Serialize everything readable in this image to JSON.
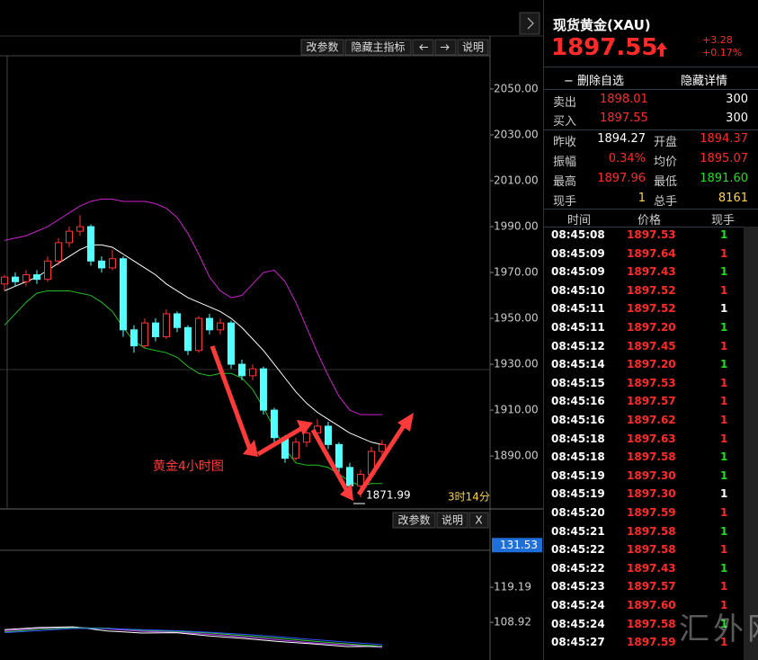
{
  "chart_data": [
    {
      "type": "candlestick",
      "candles": [
        {
          "o": 1965,
          "h": 1969,
          "l": 1962,
          "c": 1968
        },
        {
          "o": 1968,
          "h": 1970,
          "l": 1964,
          "c": 1966
        },
        {
          "o": 1966,
          "h": 1971,
          "l": 1964,
          "c": 1969
        },
        {
          "o": 1969,
          "h": 1971,
          "l": 1965,
          "c": 1967
        },
        {
          "o": 1967,
          "h": 1977,
          "l": 1966,
          "c": 1975
        },
        {
          "o": 1975,
          "h": 1985,
          "l": 1973,
          "c": 1983
        },
        {
          "o": 1983,
          "h": 1990,
          "l": 1981,
          "c": 1988
        },
        {
          "o": 1988,
          "h": 1995,
          "l": 1986,
          "c": 1990
        },
        {
          "o": 1990,
          "h": 1991,
          "l": 1973,
          "c": 1975
        },
        {
          "o": 1975,
          "h": 1977,
          "l": 1970,
          "c": 1972
        },
        {
          "o": 1972,
          "h": 1980,
          "l": 1971,
          "c": 1976
        },
        {
          "o": 1976,
          "h": 1977,
          "l": 1942,
          "c": 1945
        },
        {
          "o": 1945,
          "h": 1947,
          "l": 1935,
          "c": 1938
        },
        {
          "o": 1938,
          "h": 1950,
          "l": 1937,
          "c": 1948
        },
        {
          "o": 1948,
          "h": 1950,
          "l": 1940,
          "c": 1942
        },
        {
          "o": 1942,
          "h": 1954,
          "l": 1941,
          "c": 1952
        },
        {
          "o": 1952,
          "h": 1953,
          "l": 1944,
          "c": 1946
        },
        {
          "o": 1946,
          "h": 1947,
          "l": 1934,
          "c": 1936
        },
        {
          "o": 1936,
          "h": 1951,
          "l": 1935,
          "c": 1950
        },
        {
          "o": 1950,
          "h": 1952,
          "l": 1943,
          "c": 1945
        },
        {
          "o": 1945,
          "h": 1950,
          "l": 1943,
          "c": 1948
        },
        {
          "o": 1948,
          "h": 1949,
          "l": 1928,
          "c": 1930
        },
        {
          "o": 1930,
          "h": 1932,
          "l": 1923,
          "c": 1925
        },
        {
          "o": 1925,
          "h": 1930,
          "l": 1923,
          "c": 1928
        },
        {
          "o": 1928,
          "h": 1929,
          "l": 1908,
          "c": 1910
        },
        {
          "o": 1910,
          "h": 1911,
          "l": 1896,
          "c": 1898
        },
        {
          "o": 1898,
          "h": 1899,
          "l": 1887,
          "c": 1889
        },
        {
          "o": 1889,
          "h": 1898,
          "l": 1888,
          "c": 1896
        },
        {
          "o": 1896,
          "h": 1902,
          "l": 1894,
          "c": 1900
        },
        {
          "o": 1900,
          "h": 1906,
          "l": 1898,
          "c": 1903
        },
        {
          "o": 1903,
          "h": 1905,
          "l": 1893,
          "c": 1895
        },
        {
          "o": 1895,
          "h": 1896,
          "l": 1883,
          "c": 1885
        },
        {
          "o": 1885,
          "h": 1887,
          "l": 1875,
          "c": 1877
        },
        {
          "o": 1877,
          "h": 1884,
          "l": 1871.99,
          "c": 1882
        },
        {
          "o": 1882,
          "h": 1894,
          "l": 1880,
          "c": 1892
        },
        {
          "o": 1892,
          "h": 1897,
          "l": 1890,
          "c": 1895
        }
      ],
      "up_color": "#ff3232",
      "down_color": "#54ffff",
      "bands": {
        "upper": [
          1984,
          1985,
          1986,
          1988,
          1990,
          1993,
          1996,
          1999,
          2001,
          2002,
          2002,
          2001,
          2001,
          2001,
          2000,
          1998,
          1994,
          1987,
          1978,
          1968,
          1962,
          1959,
          1960,
          1965,
          1970,
          1971,
          1966,
          1957,
          1946,
          1935,
          1925,
          1916,
          1910,
          1908,
          1908,
          1908
        ],
        "middle": [
          1962,
          1964,
          1966,
          1968,
          1971,
          1974,
          1977,
          1980,
          1982,
          1982,
          1981,
          1978,
          1975,
          1972,
          1969,
          1965,
          1962,
          1959,
          1957,
          1955,
          1953,
          1950,
          1946,
          1941,
          1936,
          1930,
          1924,
          1918,
          1913,
          1909,
          1906,
          1903,
          1900,
          1898,
          1896,
          1895
        ],
        "lower": [
          1947,
          1952,
          1957,
          1961,
          1962,
          1962,
          1962,
          1961,
          1960,
          1957,
          1953,
          1946,
          1940,
          1937,
          1936,
          1935,
          1933,
          1929,
          1926,
          1925,
          1926,
          1926,
          1924,
          1919,
          1911,
          1902,
          1893,
          1887,
          1886,
          1886,
          1885,
          1882,
          1879,
          1877,
          1878,
          1878
        ],
        "upper_color": "#d020d0",
        "middle_color": "#ffffff",
        "lower_color": "#22c022"
      },
      "ylim": [
        1867.3,
        2064.5
      ],
      "yticks": [
        {
          "value": 2050,
          "label": "2050.00"
        },
        {
          "value": 2030,
          "label": "2030.00"
        },
        {
          "value": 2010,
          "label": "2010.00"
        },
        {
          "value": 1990,
          "label": "1990.00"
        },
        {
          "value": 1970,
          "label": "1970.00"
        },
        {
          "value": 1950,
          "label": "1950.00"
        },
        {
          "value": 1930,
          "label": "1930.00"
        },
        {
          "value": 1910,
          "label": "1910.00"
        },
        {
          "value": 1890,
          "label": "1890.00"
        }
      ],
      "annotation": "黄金4小时图",
      "low_label": "1871.99",
      "countdown": "3时14分",
      "toolbar": [
        "改参数",
        "隐藏主指标",
        "说明"
      ]
    },
    {
      "type": "line",
      "lines": [
        {
          "color": "#c040ff",
          "values": [
            106.5,
            107.2,
            107.5,
            107,
            106.3,
            106,
            105.4,
            104.6,
            103.8,
            102.9,
            102.3,
            101.6
          ]
        },
        {
          "color": "#ffffff",
          "values": [
            106.8,
            107.4,
            107.6,
            106.4,
            105.8,
            105.9,
            104.9,
            104.2,
            103.3,
            102.6,
            101.8,
            101.9
          ]
        },
        {
          "color": "#30d030",
          "values": [
            106.1,
            106.9,
            107.3,
            107.2,
            106.6,
            106.3,
            105.8,
            105,
            104.3,
            103.4,
            102.6,
            101.9
          ]
        },
        {
          "color": "#3050ff",
          "values": [
            105.9,
            106.5,
            107.1,
            107.1,
            106.8,
            106.5,
            106,
            105.4,
            104.7,
            103.9,
            103.1,
            102.4
          ]
        }
      ],
      "ylim": [
        97.9,
        141.6
      ],
      "yticks": [
        119.19,
        108.92
      ],
      "last_value": 131.53,
      "toolbar": [
        "改参数",
        "说明",
        "X"
      ]
    }
  ],
  "quote": {
    "title": "现货黄金(XAU)",
    "price": "1897.55",
    "change": "+3.28",
    "change_pct": "+0.17%",
    "remove": "删除自选",
    "hide": "隐藏详情",
    "sell": [
      "卖出",
      "1898.01",
      "300"
    ],
    "buy": [
      "买入",
      "1897.55",
      "300"
    ],
    "stats": [
      [
        "昨收",
        "1894.27",
        "开盘",
        "1894.37"
      ],
      [
        "振幅",
        "0.34%",
        "均价",
        "1895.07"
      ],
      [
        "最高",
        "1897.96",
        "最低",
        "1891.60"
      ],
      [
        "现手",
        "1",
        "总手",
        "8161"
      ]
    ]
  },
  "trades": {
    "headers": [
      "时间",
      "价格",
      "现手"
    ],
    "rows": [
      {
        "time": "08:45:08",
        "price": "1897.53",
        "volume": "1",
        "color": "#22dd22"
      },
      {
        "time": "08:45:09",
        "price": "1897.64",
        "volume": "1",
        "color": "#ff2a2a"
      },
      {
        "time": "08:45:09",
        "price": "1897.43",
        "volume": "1",
        "color": "#22dd22"
      },
      {
        "time": "08:45:10",
        "price": "1897.52",
        "volume": "1",
        "color": "#ff2a2a"
      },
      {
        "time": "08:45:11",
        "price": "1897.52",
        "volume": "1",
        "color": "#ffffff"
      },
      {
        "time": "08:45:11",
        "price": "1897.20",
        "volume": "1",
        "color": "#22dd22"
      },
      {
        "time": "08:45:12",
        "price": "1897.45",
        "volume": "1",
        "color": "#ff2a2a"
      },
      {
        "time": "08:45:14",
        "price": "1897.20",
        "volume": "1",
        "color": "#22dd22"
      },
      {
        "time": "08:45:15",
        "price": "1897.53",
        "volume": "1",
        "color": "#ff2a2a"
      },
      {
        "time": "08:45:16",
        "price": "1897.57",
        "volume": "1",
        "color": "#ff2a2a"
      },
      {
        "time": "08:45:16",
        "price": "1897.62",
        "volume": "1",
        "color": "#ff2a2a"
      },
      {
        "time": "08:45:18",
        "price": "1897.63",
        "volume": "1",
        "color": "#ff2a2a"
      },
      {
        "time": "08:45:18",
        "price": "1897.58",
        "volume": "1",
        "color": "#22dd22"
      },
      {
        "time": "08:45:19",
        "price": "1897.30",
        "volume": "1",
        "color": "#22dd22"
      },
      {
        "time": "08:45:19",
        "price": "1897.30",
        "volume": "1",
        "color": "#ffffff"
      },
      {
        "time": "08:45:20",
        "price": "1897.59",
        "volume": "1",
        "color": "#ff2a2a"
      },
      {
        "time": "08:45:21",
        "price": "1897.58",
        "volume": "1",
        "color": "#22dd22"
      },
      {
        "time": "08:45:22",
        "price": "1897.58",
        "volume": "1",
        "color": "#ff2a2a"
      },
      {
        "time": "08:45:22",
        "price": "1897.43",
        "volume": "1",
        "color": "#22dd22"
      },
      {
        "time": "08:45:23",
        "price": "1897.57",
        "volume": "1",
        "color": "#ff2a2a"
      },
      {
        "time": "08:45:24",
        "price": "1897.60",
        "volume": "1",
        "color": "#ff2a2a"
      },
      {
        "time": "08:45:24",
        "price": "1897.58",
        "volume": "1",
        "color": "#22dd22"
      },
      {
        "time": "08:45:27",
        "price": "1897.59",
        "volume": "1",
        "color": "#ff2a2a"
      }
    ]
  },
  "watermark": "汇外网"
}
